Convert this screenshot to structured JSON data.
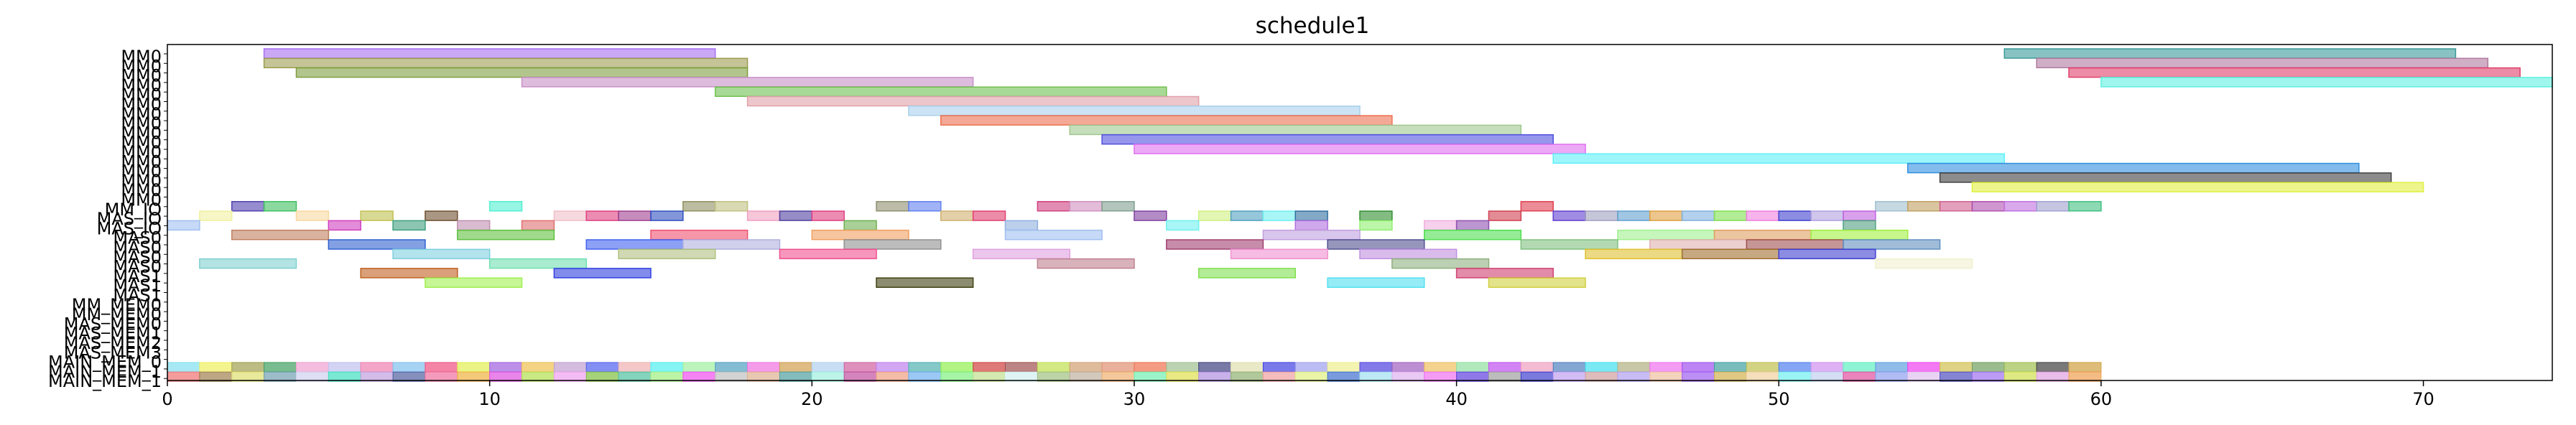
{
  "chart_data": {
    "type": "gantt",
    "title": "schedule1",
    "xlabel": "",
    "ylabel": "",
    "xlim": [
      0,
      74
    ],
    "xticks": [
      0,
      10,
      20,
      30,
      40,
      50,
      60,
      70
    ],
    "y_labels": [
      "MM0",
      "MM0",
      "MM0",
      "MM0",
      "MM0",
      "MM0",
      "MM0",
      "MM0",
      "MM0",
      "MM0",
      "MM0",
      "MM0",
      "MM0",
      "MM0",
      "MM0",
      "MM0",
      "MM_IO",
      "MAS_IO",
      "MAS_IO",
      "MAS0",
      "MAS0",
      "MAS0",
      "MAS0",
      "MAS1",
      "MAS1",
      "MAS1",
      "MM_MEM0",
      "MM_MEM0",
      "MAS_MEM0",
      "MAS_MEM1",
      "MAS_MEM2",
      "MAS_MEM3",
      "MAIN_MEM_0",
      "MAIN_MEM_1",
      "MAIN_MEM_1"
    ],
    "bars": [
      {
        "row": 0,
        "start": 3,
        "end": 17,
        "color": "#a66ef0"
      },
      {
        "row": 0,
        "start": 57,
        "end": 71,
        "color": "#3a9a9a"
      },
      {
        "row": 1,
        "start": 3,
        "end": 18,
        "color": "#9c9c50"
      },
      {
        "row": 1,
        "start": 58,
        "end": 72,
        "color": "#b07aa0"
      },
      {
        "row": 2,
        "start": 4,
        "end": 18,
        "color": "#7f9f40"
      },
      {
        "row": 2,
        "start": 59,
        "end": 73,
        "color": "#e0406a"
      },
      {
        "row": 3,
        "start": 11,
        "end": 25,
        "color": "#c890c8"
      },
      {
        "row": 3,
        "start": 60,
        "end": 74,
        "color": "#5ef0e0"
      },
      {
        "row": 4,
        "start": 17,
        "end": 31,
        "color": "#70c050"
      },
      {
        "row": 5,
        "start": 18,
        "end": 32,
        "color": "#e0a0a8"
      },
      {
        "row": 6,
        "start": 23,
        "end": 37,
        "color": "#a8d0ec"
      },
      {
        "row": 7,
        "start": 24,
        "end": 38,
        "color": "#ec7050"
      },
      {
        "row": 8,
        "start": 28,
        "end": 42,
        "color": "#a0c890"
      },
      {
        "row": 9,
        "start": 29,
        "end": 43,
        "color": "#5050e0"
      },
      {
        "row": 10,
        "start": 30,
        "end": 44,
        "color": "#e070f0"
      },
      {
        "row": 11,
        "start": 43,
        "end": 57,
        "color": "#5ef0f8"
      },
      {
        "row": 12,
        "start": 54,
        "end": 68,
        "color": "#3090e0"
      },
      {
        "row": 13,
        "start": 55,
        "end": 69,
        "color": "#404040"
      },
      {
        "row": 14,
        "start": 56,
        "end": 70,
        "color": "#e0f040"
      },
      {
        "row": 16,
        "start": 2,
        "end": 3,
        "color": "#5040b0"
      },
      {
        "row": 16,
        "start": 3,
        "end": 4,
        "color": "#40c060"
      },
      {
        "row": 16,
        "start": 10,
        "end": 11,
        "color": "#50f0d0"
      },
      {
        "row": 16,
        "start": 16,
        "end": 17,
        "color": "#909060"
      },
      {
        "row": 16,
        "start": 17,
        "end": 18,
        "color": "#c0c080"
      },
      {
        "row": 16,
        "start": 22,
        "end": 23,
        "color": "#909070"
      },
      {
        "row": 16,
        "start": 23,
        "end": 24,
        "color": "#6080f0"
      },
      {
        "row": 16,
        "start": 27,
        "end": 28,
        "color": "#d04080"
      },
      {
        "row": 16,
        "start": 28,
        "end": 29,
        "color": "#d090c0"
      },
      {
        "row": 16,
        "start": 29,
        "end": 30,
        "color": "#80a090"
      },
      {
        "row": 16,
        "start": 42,
        "end": 43,
        "color": "#e04050"
      },
      {
        "row": 16,
        "start": 53,
        "end": 54,
        "color": "#a0c0d0"
      },
      {
        "row": 16,
        "start": 54,
        "end": 55,
        "color": "#c0a060"
      },
      {
        "row": 16,
        "start": 55,
        "end": 56,
        "color": "#d06090"
      },
      {
        "row": 16,
        "start": 56,
        "end": 57,
        "color": "#b050b0"
      },
      {
        "row": 16,
        "start": 57,
        "end": 58,
        "color": "#c070e0"
      },
      {
        "row": 16,
        "start": 58,
        "end": 59,
        "color": "#a0a0d0"
      },
      {
        "row": 16,
        "start": 59,
        "end": 60,
        "color": "#40c080"
      },
      {
        "row": 17,
        "start": 1,
        "end": 2,
        "color": "#f0f0a0"
      },
      {
        "row": 17,
        "start": 4,
        "end": 5,
        "color": "#f8d8a0"
      },
      {
        "row": 17,
        "start": 6,
        "end": 7,
        "color": "#c0c050"
      },
      {
        "row": 17,
        "start": 8,
        "end": 9,
        "color": "#705030"
      },
      {
        "row": 17,
        "start": 12,
        "end": 13,
        "color": "#f0c0c8"
      },
      {
        "row": 17,
        "start": 13,
        "end": 14,
        "color": "#e04080"
      },
      {
        "row": 17,
        "start": 14,
        "end": 15,
        "color": "#a04090"
      },
      {
        "row": 17,
        "start": 15,
        "end": 16,
        "color": "#3050c0"
      },
      {
        "row": 17,
        "start": 18,
        "end": 19,
        "color": "#f0a0c0"
      },
      {
        "row": 17,
        "start": 19,
        "end": 20,
        "color": "#5040a0"
      },
      {
        "row": 17,
        "start": 20,
        "end": 21,
        "color": "#e04080"
      },
      {
        "row": 17,
        "start": 24,
        "end": 25,
        "color": "#d0b070"
      },
      {
        "row": 17,
        "start": 25,
        "end": 26,
        "color": "#e04070"
      },
      {
        "row": 17,
        "start": 30,
        "end": 31,
        "color": "#8040a0"
      },
      {
        "row": 17,
        "start": 32,
        "end": 33,
        "color": "#d0f080"
      },
      {
        "row": 17,
        "start": 33,
        "end": 34,
        "color": "#50a0c0"
      },
      {
        "row": 17,
        "start": 34,
        "end": 35,
        "color": "#70f0f0"
      },
      {
        "row": 17,
        "start": 35,
        "end": 36,
        "color": "#3070a0"
      },
      {
        "row": 17,
        "start": 37,
        "end": 38,
        "color": "#309030"
      },
      {
        "row": 17,
        "start": 41,
        "end": 42,
        "color": "#d04050"
      },
      {
        "row": 17,
        "start": 43,
        "end": 44,
        "color": "#6040d0"
      },
      {
        "row": 17,
        "start": 44,
        "end": 45,
        "color": "#a0a0c0"
      },
      {
        "row": 17,
        "start": 45,
        "end": 46,
        "color": "#60a0d0"
      },
      {
        "row": 17,
        "start": 46,
        "end": 47,
        "color": "#e0a040"
      },
      {
        "row": 17,
        "start": 47,
        "end": 48,
        "color": "#80b0e0"
      },
      {
        "row": 17,
        "start": 48,
        "end": 49,
        "color": "#80e050"
      },
      {
        "row": 17,
        "start": 49,
        "end": 50,
        "color": "#f080e0"
      },
      {
        "row": 17,
        "start": 50,
        "end": 51,
        "color": "#4040d0"
      },
      {
        "row": 17,
        "start": 51,
        "end": 52,
        "color": "#b0a0e0"
      },
      {
        "row": 17,
        "start": 52,
        "end": 53,
        "color": "#c060e0"
      },
      {
        "row": 18,
        "start": 0,
        "end": 1,
        "color": "#a0c0f0"
      },
      {
        "row": 18,
        "start": 5,
        "end": 6,
        "color": "#d040c0"
      },
      {
        "row": 18,
        "start": 7,
        "end": 8,
        "color": "#40a080"
      },
      {
        "row": 18,
        "start": 9,
        "end": 10,
        "color": "#c090b0"
      },
      {
        "row": 18,
        "start": 11,
        "end": 12,
        "color": "#e07070"
      },
      {
        "row": 18,
        "start": 21,
        "end": 22,
        "color": "#70b050"
      },
      {
        "row": 18,
        "start": 26,
        "end": 27,
        "color": "#90b0e0"
      },
      {
        "row": 18,
        "start": 31,
        "end": 32,
        "color": "#70f0f0"
      },
      {
        "row": 18,
        "start": 35,
        "end": 36,
        "color": "#b070e0"
      },
      {
        "row": 18,
        "start": 37,
        "end": 38,
        "color": "#90f070"
      },
      {
        "row": 18,
        "start": 39,
        "end": 40,
        "color": "#f0b0e0"
      },
      {
        "row": 18,
        "start": 40,
        "end": 41,
        "color": "#9050b0"
      },
      {
        "row": 18,
        "start": 52,
        "end": 53,
        "color": "#50a080"
      },
      {
        "row": 19,
        "start": 2,
        "end": 5,
        "color": "#c08060"
      },
      {
        "row": 19,
        "start": 9,
        "end": 12,
        "color": "#60c040"
      },
      {
        "row": 19,
        "start": 15,
        "end": 18,
        "color": "#f05070"
      },
      {
        "row": 19,
        "start": 20,
        "end": 23,
        "color": "#f0a060"
      },
      {
        "row": 19,
        "start": 26,
        "end": 29,
        "color": "#a0c0f0"
      },
      {
        "row": 19,
        "start": 34,
        "end": 37,
        "color": "#c0a0e0"
      },
      {
        "row": 19,
        "start": 39,
        "end": 42,
        "color": "#50e050"
      },
      {
        "row": 19,
        "start": 45,
        "end": 48,
        "color": "#a0f090"
      },
      {
        "row": 19,
        "start": 48,
        "end": 51,
        "color": "#e0a060"
      },
      {
        "row": 19,
        "start": 51,
        "end": 54,
        "color": "#a0f040"
      },
      {
        "row": 20,
        "start": 5,
        "end": 8,
        "color": "#3060d0"
      },
      {
        "row": 20,
        "start": 13,
        "end": 16,
        "color": "#4060f0"
      },
      {
        "row": 20,
        "start": 16,
        "end": 19,
        "color": "#b0b0e0"
      },
      {
        "row": 20,
        "start": 21,
        "end": 24,
        "color": "#909090"
      },
      {
        "row": 20,
        "start": 31,
        "end": 34,
        "color": "#a04070"
      },
      {
        "row": 20,
        "start": 36,
        "end": 39,
        "color": "#505090"
      },
      {
        "row": 20,
        "start": 42,
        "end": 45,
        "color": "#80c080"
      },
      {
        "row": 20,
        "start": 46,
        "end": 49,
        "color": "#e0b0b0"
      },
      {
        "row": 20,
        "start": 49,
        "end": 52,
        "color": "#a05050"
      },
      {
        "row": 20,
        "start": 52,
        "end": 55,
        "color": "#6090c0"
      },
      {
        "row": 21,
        "start": 7,
        "end": 10,
        "color": "#80d0e0"
      },
      {
        "row": 21,
        "start": 14,
        "end": 17,
        "color": "#b0c080"
      },
      {
        "row": 21,
        "start": 19,
        "end": 22,
        "color": "#f05090"
      },
      {
        "row": 21,
        "start": 25,
        "end": 28,
        "color": "#e0a0e0"
      },
      {
        "row": 21,
        "start": 33,
        "end": 36,
        "color": "#f090d0"
      },
      {
        "row": 21,
        "start": 37,
        "end": 40,
        "color": "#c090e0"
      },
      {
        "row": 21,
        "start": 44,
        "end": 47,
        "color": "#e0c030"
      },
      {
        "row": 21,
        "start": 47,
        "end": 50,
        "color": "#a07030"
      },
      {
        "row": 21,
        "start": 50,
        "end": 53,
        "color": "#4040d0"
      },
      {
        "row": 22,
        "start": 1,
        "end": 4,
        "color": "#80d0d0"
      },
      {
        "row": 22,
        "start": 10,
        "end": 13,
        "color": "#70e0b0"
      },
      {
        "row": 22,
        "start": 27,
        "end": 30,
        "color": "#c08090"
      },
      {
        "row": 22,
        "start": 38,
        "end": 41,
        "color": "#90b080"
      },
      {
        "row": 22,
        "start": 53,
        "end": 56,
        "color": "#f0f0d0"
      },
      {
        "row": 23,
        "start": 6,
        "end": 9,
        "color": "#c06020"
      },
      {
        "row": 23,
        "start": 12,
        "end": 15,
        "color": "#3040e0"
      },
      {
        "row": 23,
        "start": 32,
        "end": 35,
        "color": "#80e050"
      },
      {
        "row": 23,
        "start": 40,
        "end": 43,
        "color": "#d04070"
      },
      {
        "row": 24,
        "start": 8,
        "end": 11,
        "color": "#a0f050"
      },
      {
        "row": 24,
        "start": 22,
        "end": 25,
        "color": "#404010"
      },
      {
        "row": 24,
        "start": 36,
        "end": 39,
        "color": "#50e0f0"
      },
      {
        "row": 24,
        "start": 41,
        "end": 44,
        "color": "#d0d040"
      }
    ],
    "mem_rows": {
      "row33_colors": [
        "#80e0f0",
        "#f0f060",
        "#a0a050",
        "#40a060",
        "#f0a0d0",
        "#c0c0f0",
        "#f080b0",
        "#80c0f0",
        "#f05080",
        "#e0f050",
        "#a060e0",
        "#f0c050",
        "#c0a0d0",
        "#5060f0",
        "#f0b0b0",
        "#50f0f0",
        "#a0f0a0",
        "#50a0c0",
        "#f070e0",
        "#d0a050",
        "#b0d0f0",
        "#d060a0",
        "#c080f0",
        "#50b0b0",
        "#90f050",
        "#d04040",
        "#a05050",
        "#c0e050",
        "#d0a070",
        "#e09070",
        "#f07050",
        "#a0c090",
        "#404080",
        "#e0e0b0",
        "#4040e0",
        "#a0a0f0",
        "#f0f090",
        "#5040e0",
        "#a060c0",
        "#f0c060",
        "#90e0a0",
        "#c050f0",
        "#f0a0c0",
        "#5080c0",
        "#40e0f0",
        "#b0b080",
        "#f070f0",
        "#a050f0",
        "#40a0a0",
        "#c0c050",
        "#5080f0",
        "#d090f0",
        "#60f0c0",
        "#60a0e0",
        "#f040f0",
        "#d0c050",
        "#70a060",
        "#a0c050",
        "#404040",
        "#d0a040"
      ],
      "row34_colors": [
        "#f07070",
        "#a08050",
        "#e0e070",
        "#70a0b0",
        "#d0d0f0",
        "#40e0c0",
        "#c0a0e0",
        "#5060a0",
        "#f070a0",
        "#f0b040",
        "#e050e0",
        "#b0e050",
        "#f0a0f0",
        "#80c040",
        "#50c0a0",
        "#a0f080",
        "#f050f0",
        "#c0c0c0",
        "#e0b090",
        "#50a0a0",
        "#a0f0e0",
        "#c050a0",
        "#f0a080",
        "#70b0f0",
        "#80f080",
        "#c0e090",
        "#d0f0f0",
        "#a0c080",
        "#c0b0a0",
        "#f0b070",
        "#70f0b0",
        "#e0e050",
        "#b090e0",
        "#90b070",
        "#f0a0a0",
        "#e0f080",
        "#4070d0",
        "#a0e0f0",
        "#e0b0f0",
        "#f070f0",
        "#6040e0",
        "#a0a0a0",
        "#4040d0",
        "#c0a0f0",
        "#d0a0a0",
        "#b0a0f0",
        "#f0c0a0",
        "#a060f0",
        "#d0b050",
        "#f0d0a0",
        "#70f0f0",
        "#c0d0f0",
        "#e050a0",
        "#90a0f0",
        "#e0c0f0",
        "#5050c0",
        "#a070f0",
        "#d0e050",
        "#e0a0e0",
        "#f0a050"
      ]
    }
  }
}
